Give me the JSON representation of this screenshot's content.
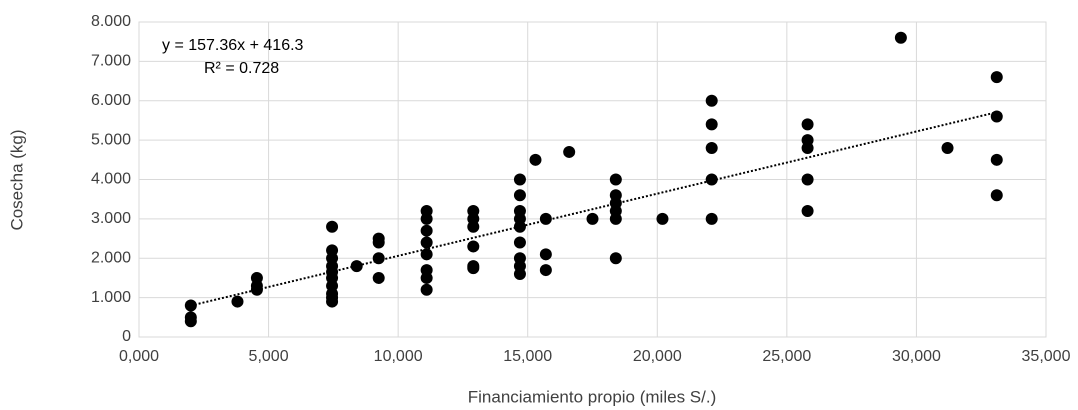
{
  "chart_data": {
    "type": "scatter",
    "x_label": "Financiamiento propio (miles S/.)",
    "y_label": "Cosecha (kg)",
    "annotations": [
      "y = 157.36x + 416.3",
      "R² = 0.728"
    ],
    "color": "#000000",
    "grid": true,
    "trendline": true,
    "xlim": [
      0,
      35
    ],
    "ylim": [
      0,
      8000
    ],
    "xticks": [
      {
        "value": 0,
        "label": "0,000"
      },
      {
        "value": 5,
        "label": "5,000"
      },
      {
        "value": 10,
        "label": "10,000"
      },
      {
        "value": 15,
        "label": "15,000"
      },
      {
        "value": 20,
        "label": "20,000"
      },
      {
        "value": 25,
        "label": "25,000"
      },
      {
        "value": 30,
        "label": "30,000"
      },
      {
        "value": 35,
        "label": "35,000"
      }
    ],
    "yticks": [
      0,
      {
        "value": 1000,
        "label": "1.000"
      },
      {
        "value": 2000,
        "label": "2.000"
      },
      {
        "value": 3000,
        "label": "3.000"
      },
      {
        "value": 4000,
        "label": "4.000"
      },
      {
        "value": 5000,
        "label": "5.000"
      },
      {
        "value": 6000,
        "label": "6.000"
      },
      {
        "value": 7000,
        "label": "7.000"
      },
      {
        "value": 8000,
        "label": "8.000"
      }
    ],
    "x": [
      2,
      2,
      2,
      3.8,
      4.55,
      4.55,
      4.55,
      7.45,
      7.45,
      7.45,
      7.45,
      7.45,
      7.45,
      7.45,
      7.45,
      7.45,
      7.45,
      8.4,
      9.25,
      9.25,
      9.25,
      9.25,
      11.1,
      11.1,
      11.1,
      11.1,
      11.1,
      11.1,
      11.1,
      11.1,
      12.9,
      12.9,
      12.9,
      12.9,
      12.9,
      12.9,
      14.7,
      14.7,
      14.7,
      14.7,
      14.7,
      14.7,
      14.7,
      14.7,
      14.7,
      15.3,
      15.7,
      15.7,
      15.7,
      16.6,
      17.5,
      18.4,
      18.4,
      18.4,
      18.4,
      18.4,
      18.4,
      20.2,
      22.1,
      22.1,
      22.1,
      22.1,
      22.1,
      25.8,
      25.8,
      25.8,
      25.8,
      25.8,
      29.4,
      31.2,
      33.1,
      33.1,
      33.1,
      33.1
    ],
    "values": [
      800,
      500,
      400,
      900,
      1500,
      1300,
      1200,
      2800,
      2200,
      2000,
      1800,
      1650,
      1500,
      1300,
      1100,
      1000,
      900,
      1800,
      2500,
      2400,
      2000,
      1500,
      3200,
      3000,
      2700,
      2400,
      2100,
      1700,
      1500,
      1200,
      3200,
      3000,
      2800,
      2300,
      1800,
      1750,
      4000,
      3600,
      3200,
      3000,
      2800,
      2400,
      2000,
      1800,
      1600,
      4500,
      3000,
      2100,
      1700,
      4700,
      3000,
      4000,
      3600,
      3400,
      3200,
      3000,
      2000,
      3000,
      6000,
      5400,
      4800,
      4000,
      3000,
      5400,
      5000,
      4800,
      4000,
      3200,
      7600,
      4800,
      6600,
      5600,
      4500,
      3600
    ]
  }
}
